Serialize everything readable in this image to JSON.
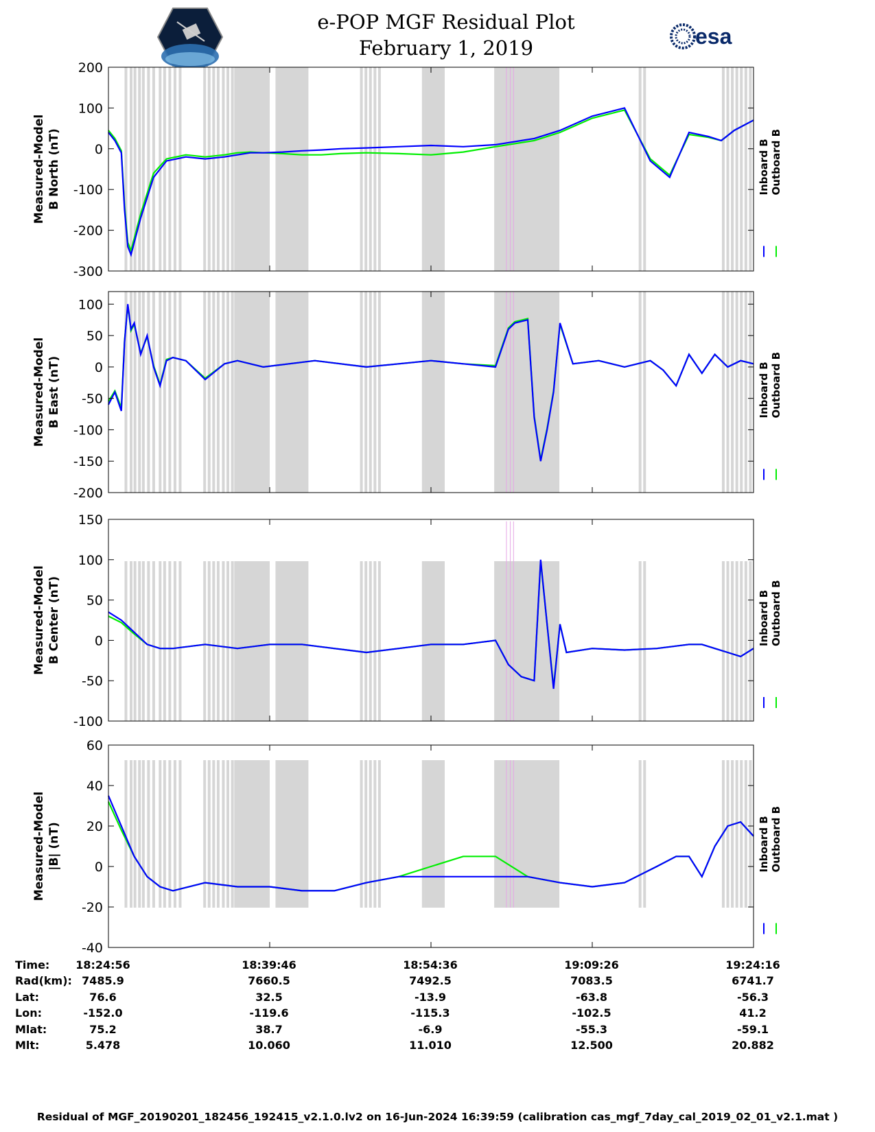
{
  "header": {
    "title": "e-POP MGF Residual Plot",
    "date": "February 1, 2019",
    "mission_logo": "cassiope-mission-patch",
    "agency_logo": "esa-logo",
    "agency_logo_text": "esa"
  },
  "colors": {
    "inboard": "#0000ff",
    "outboard": "#00ee00",
    "gap_shading": "#d6d6d6",
    "marker": "#e6a6e6"
  },
  "legend": [
    "Inboard B",
    "Outboard B"
  ],
  "chart_data": [
    {
      "type": "line",
      "ylabel": [
        "Measured-Model",
        "B North (nT)"
      ],
      "ylim": [
        -300,
        200
      ],
      "yticks": [
        "-300",
        "-200",
        "-100",
        "0",
        "100",
        "200"
      ],
      "legend": [
        "Inboard B",
        "Outboard B"
      ],
      "legend_position": "right",
      "grid": false,
      "series": [
        {
          "name": "Inboard B",
          "x": [
            0,
            1,
            2,
            2.5,
            3,
            3.5,
            4,
            5,
            6,
            7,
            9,
            12,
            15,
            18,
            20,
            22,
            24,
            27,
            30,
            33,
            36,
            40,
            45,
            50,
            55,
            60,
            66,
            70,
            75,
            80,
            84,
            87,
            90,
            93,
            95,
            97,
            100
          ],
          "y": [
            40,
            20,
            -10,
            -150,
            -240,
            -260,
            -230,
            -170,
            -120,
            -70,
            -30,
            -20,
            -25,
            -20,
            -15,
            -10,
            -10,
            -8,
            -5,
            -3,
            0,
            2,
            5,
            8,
            5,
            10,
            25,
            45,
            80,
            100,
            -30,
            -70,
            40,
            30,
            20,
            45,
            70
          ]
        },
        {
          "name": "Outboard B",
          "x": [
            0,
            1,
            2,
            2.5,
            3,
            3.5,
            4,
            5,
            6,
            7,
            9,
            12,
            15,
            18,
            20,
            22,
            24,
            27,
            30,
            33,
            36,
            40,
            45,
            50,
            55,
            60,
            66,
            70,
            75,
            80,
            84,
            87,
            90,
            93,
            95,
            97,
            100
          ],
          "y": [
            45,
            25,
            -5,
            -140,
            -230,
            -250,
            -220,
            -160,
            -110,
            -60,
            -25,
            -15,
            -20,
            -15,
            -10,
            -8,
            -10,
            -12,
            -15,
            -15,
            -12,
            -10,
            -12,
            -15,
            -8,
            5,
            20,
            40,
            75,
            95,
            -25,
            -65,
            35,
            28,
            20,
            45,
            70
          ]
        }
      ]
    },
    {
      "type": "line",
      "ylabel": [
        "Measured-Model",
        "B East (nT)"
      ],
      "ylim": [
        -200,
        120
      ],
      "yticks": [
        "-200",
        "-150",
        "-100",
        "-50",
        "0",
        "50",
        "100"
      ],
      "legend": [
        "Inboard B",
        "Outboard B"
      ],
      "legend_position": "right",
      "grid": false,
      "series": [
        {
          "name": "Inboard B",
          "x": [
            0,
            1,
            2,
            2.5,
            3,
            3.5,
            4,
            5,
            6,
            7,
            8,
            9,
            10,
            12,
            15,
            18,
            20,
            24,
            28,
            32,
            36,
            40,
            45,
            50,
            55,
            60,
            62,
            63,
            65,
            66,
            67,
            68,
            69,
            70,
            72,
            76,
            80,
            84,
            86,
            88,
            90,
            92,
            94,
            96,
            98,
            100
          ],
          "y": [
            -60,
            -40,
            -70,
            40,
            100,
            60,
            70,
            20,
            50,
            0,
            -30,
            10,
            15,
            10,
            -20,
            5,
            10,
            0,
            5,
            10,
            5,
            0,
            5,
            10,
            5,
            0,
            60,
            70,
            75,
            -80,
            -150,
            -100,
            -40,
            70,
            5,
            10,
            0,
            10,
            -5,
            -30,
            20,
            -10,
            20,
            0,
            10,
            5
          ]
        },
        {
          "name": "Outboard B",
          "x": [
            0,
            1,
            2,
            2.5,
            3,
            3.5,
            4,
            5,
            6,
            7,
            8,
            9,
            10,
            12,
            15,
            18,
            20,
            24,
            28,
            32,
            36,
            40,
            45,
            50,
            55,
            60,
            62,
            63,
            65,
            66,
            67,
            68,
            69,
            70,
            72,
            76,
            80,
            84,
            86,
            88,
            90,
            92,
            94,
            96,
            98,
            100
          ],
          "y": [
            -55,
            -38,
            -65,
            42,
            98,
            58,
            68,
            22,
            48,
            2,
            -28,
            12,
            15,
            10,
            -18,
            5,
            10,
            0,
            5,
            10,
            5,
            0,
            5,
            10,
            5,
            2,
            62,
            72,
            77,
            -78,
            -148,
            -98,
            -38,
            68,
            5,
            10,
            0,
            10,
            -5,
            -30,
            20,
            -10,
            20,
            0,
            10,
            5
          ]
        }
      ]
    },
    {
      "type": "line",
      "ylabel": [
        "Measured-Model",
        "B Center (nT)"
      ],
      "ylim": [
        -100,
        150
      ],
      "yticks": [
        "-100",
        "-50",
        "0",
        "50",
        "100",
        "150"
      ],
      "legend": [
        "Inboard B",
        "Outboard B"
      ],
      "legend_position": "right",
      "grid": false,
      "series": [
        {
          "name": "Inboard B",
          "x": [
            0,
            2,
            4,
            6,
            8,
            10,
            15,
            20,
            25,
            30,
            35,
            40,
            45,
            50,
            55,
            60,
            62,
            64,
            66,
            67,
            68,
            69,
            70,
            71,
            75,
            80,
            85,
            90,
            92,
            94,
            96,
            98,
            100
          ],
          "y": [
            35,
            25,
            10,
            -5,
            -10,
            -10,
            -5,
            -10,
            -5,
            -5,
            -10,
            -15,
            -10,
            -5,
            -5,
            0,
            -30,
            -45,
            -50,
            100,
            20,
            -60,
            20,
            -15,
            -10,
            -12,
            -10,
            -5,
            -5,
            -10,
            -15,
            -20,
            -10
          ]
        },
        {
          "name": "Outboard B",
          "x": [
            0,
            2,
            4,
            6,
            8,
            10,
            15,
            20,
            25,
            30,
            35,
            40,
            45,
            50,
            55,
            60,
            62,
            64,
            66,
            67,
            68,
            69,
            70,
            71,
            75,
            80,
            85,
            90,
            92,
            94,
            96,
            98,
            100
          ],
          "y": [
            30,
            22,
            8,
            -5,
            -10,
            -10,
            -5,
            -10,
            -5,
            -5,
            -10,
            -15,
            -10,
            -5,
            -5,
            0,
            -30,
            -45,
            -50,
            98,
            20,
            -58,
            20,
            -15,
            -10,
            -12,
            -10,
            -5,
            -5,
            -10,
            -15,
            -20,
            -10
          ]
        }
      ]
    },
    {
      "type": "line",
      "ylabel": [
        "Measured-Model",
        "|B| (nT)"
      ],
      "ylim": [
        -40,
        60
      ],
      "yticks": [
        "-40",
        "-20",
        "0",
        "20",
        "40",
        "60"
      ],
      "legend": [
        "Inboard B",
        "Outboard B"
      ],
      "legend_position": "right",
      "grid": false,
      "series": [
        {
          "name": "Inboard B",
          "x": [
            0,
            2,
            4,
            6,
            8,
            10,
            15,
            20,
            25,
            30,
            35,
            40,
            45,
            50,
            55,
            60,
            65,
            70,
            75,
            80,
            85,
            88,
            90,
            92,
            94,
            96,
            98,
            100
          ],
          "y": [
            35,
            20,
            5,
            -5,
            -10,
            -12,
            -8,
            -10,
            -10,
            -12,
            -12,
            -8,
            -5,
            -5,
            -5,
            -5,
            -5,
            -8,
            -10,
            -8,
            0,
            5,
            5,
            -5,
            10,
            20,
            22,
            15
          ]
        },
        {
          "name": "Outboard B",
          "x": [
            0,
            2,
            4,
            6,
            8,
            10,
            15,
            20,
            25,
            30,
            35,
            40,
            45,
            50,
            55,
            60,
            65,
            70,
            75,
            80,
            85,
            88,
            90,
            92,
            94,
            96,
            98,
            100
          ],
          "y": [
            32,
            18,
            5,
            -5,
            -10,
            -12,
            -8,
            -10,
            -10,
            -12,
            -12,
            -8,
            -5,
            0,
            5,
            5,
            -5,
            -8,
            -10,
            -8,
            0,
            5,
            5,
            -5,
            10,
            20,
            22,
            15
          ]
        }
      ]
    }
  ],
  "xaxis": {
    "rows": [
      {
        "label": "Time:",
        "values": [
          "18:24:56",
          "18:39:46",
          "18:54:36",
          "19:09:26",
          "19:24:16"
        ]
      },
      {
        "label": "Rad(km):",
        "values": [
          "7485.9",
          "7660.5",
          "7492.5",
          "7083.5",
          "6741.7"
        ]
      },
      {
        "label": "Lat:",
        "values": [
          "76.6",
          "32.5",
          "-13.9",
          "-63.8",
          "-56.3"
        ]
      },
      {
        "label": "Lon:",
        "values": [
          "-152.0",
          "-119.6",
          "-115.3",
          "-102.5",
          "41.2"
        ]
      },
      {
        "label": "Mlat:",
        "values": [
          "75.2",
          "38.7",
          "-6.9",
          "-55.3",
          "-59.1"
        ]
      },
      {
        "label": "Mlt:",
        "values": [
          "5.478",
          "10.060",
          "11.010",
          "12.500",
          "20.882"
        ]
      }
    ]
  },
  "footer": "Residual of MGF_20190201_182456_192415_v2.1.0.lv2 on 16-Jun-2024 16:39:59 (calibration cas_mgf_7day_cal_2019_02_01_v2.1.mat )"
}
